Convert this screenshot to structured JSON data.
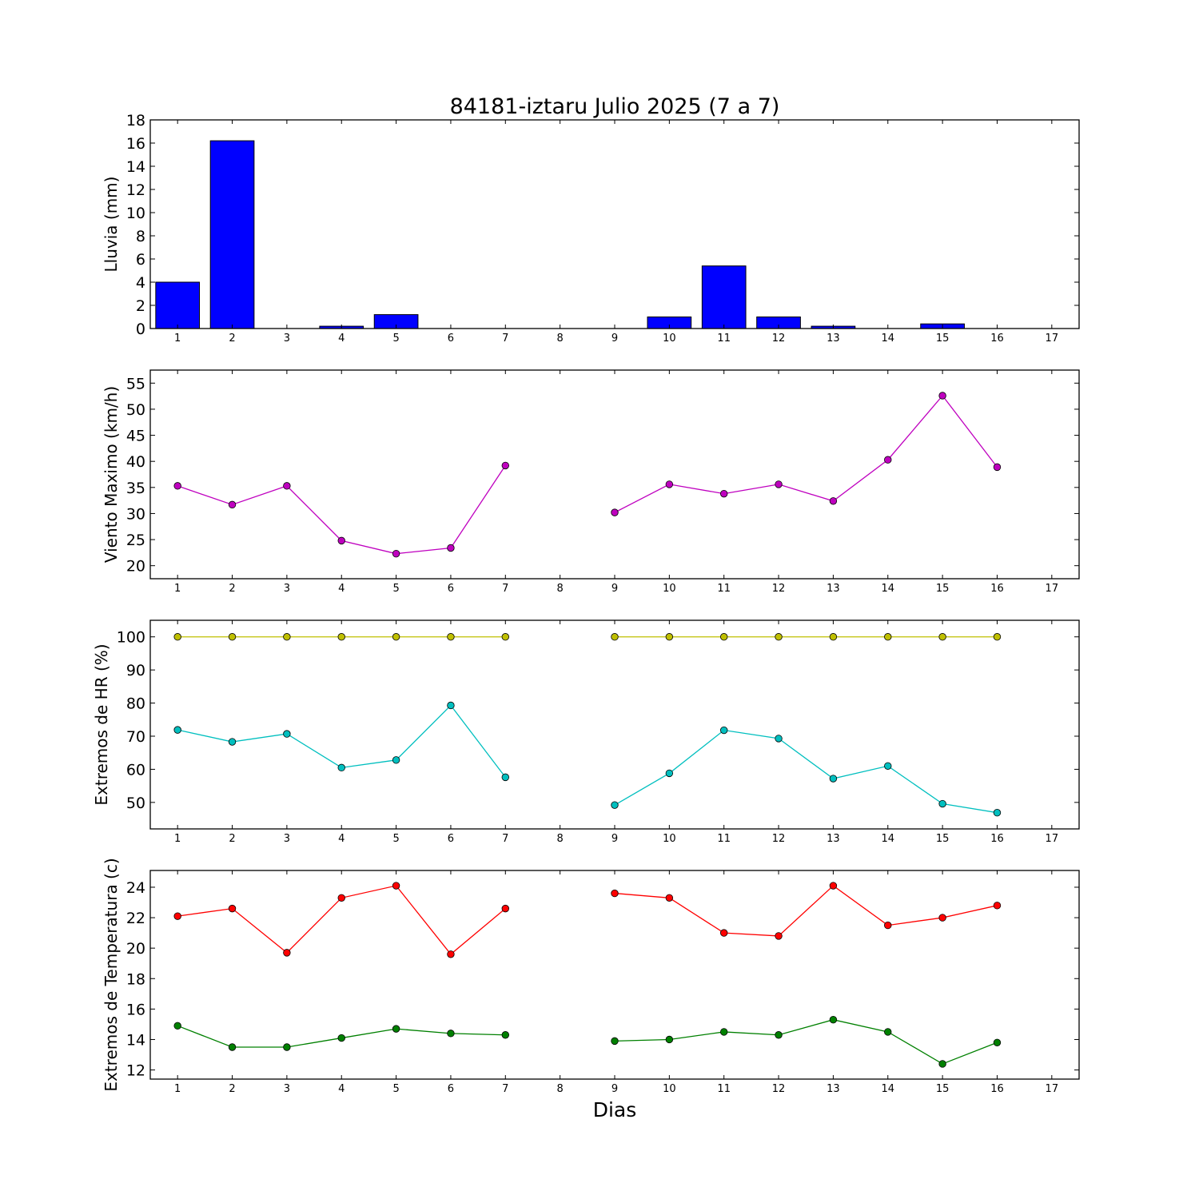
{
  "figure": {
    "title": "84181-iztaru Julio 2025  (7 a 7)",
    "xlabel": "Dias"
  },
  "chart_data": [
    {
      "type": "bar",
      "ylabel": "Lluvia (mm)",
      "xlim": [
        0.5,
        17.5
      ],
      "ylim": [
        0,
        18
      ],
      "xticks": [
        1,
        2,
        3,
        4,
        5,
        6,
        7,
        8,
        9,
        10,
        11,
        12,
        13,
        14,
        15,
        16,
        17
      ],
      "yticks": [
        0,
        2,
        4,
        6,
        8,
        10,
        12,
        14,
        16,
        18
      ],
      "x": [
        1,
        2,
        3,
        4,
        5,
        6,
        7,
        8,
        9,
        10,
        11,
        12,
        13,
        14,
        15,
        16
      ],
      "values": [
        4.0,
        16.2,
        0,
        0.2,
        1.2,
        0,
        0,
        0,
        0,
        1.0,
        5.4,
        1.0,
        0.2,
        0,
        0.4,
        0
      ],
      "color": "#0000ff"
    },
    {
      "type": "line",
      "ylabel": "Viento Maximo (km/h)",
      "xlim": [
        0.5,
        17.5
      ],
      "ylim": [
        17.5,
        57.5
      ],
      "xticks": [
        1,
        2,
        3,
        4,
        5,
        6,
        7,
        8,
        9,
        10,
        11,
        12,
        13,
        14,
        15,
        16,
        17
      ],
      "yticks": [
        20,
        25,
        30,
        35,
        40,
        45,
        50,
        55
      ],
      "series": [
        {
          "color": "#bf00bf",
          "x": [
            1,
            2,
            3,
            4,
            5,
            6,
            7,
            8,
            9,
            10,
            11,
            12,
            13,
            14,
            15,
            16
          ],
          "y": [
            35.3,
            31.7,
            35.3,
            24.8,
            22.3,
            23.4,
            39.2,
            null,
            30.2,
            35.6,
            33.8,
            35.6,
            32.4,
            40.3,
            52.6,
            38.9
          ]
        }
      ]
    },
    {
      "type": "line",
      "ylabel": "Extremos de HR (%)",
      "xlim": [
        0.5,
        17.5
      ],
      "ylim": [
        42,
        105
      ],
      "xticks": [
        1,
        2,
        3,
        4,
        5,
        6,
        7,
        8,
        9,
        10,
        11,
        12,
        13,
        14,
        15,
        16,
        17
      ],
      "yticks": [
        50,
        60,
        70,
        80,
        90,
        100
      ],
      "series": [
        {
          "color": "#bfbf00",
          "x": [
            1,
            2,
            3,
            4,
            5,
            6,
            7,
            8,
            9,
            10,
            11,
            12,
            13,
            14,
            15,
            16
          ],
          "y": [
            100,
            100,
            100,
            100,
            100,
            100,
            100,
            null,
            100,
            100,
            100,
            100,
            100,
            100,
            100,
            100
          ]
        },
        {
          "color": "#00bfbf",
          "x": [
            1,
            2,
            3,
            4,
            5,
            6,
            7,
            8,
            9,
            10,
            11,
            12,
            13,
            14,
            15,
            16
          ],
          "y": [
            71.9,
            68.3,
            70.7,
            60.5,
            62.8,
            79.3,
            57.6,
            null,
            49.2,
            58.8,
            71.8,
            69.3,
            57.2,
            61.0,
            49.6,
            46.9
          ]
        }
      ]
    },
    {
      "type": "line",
      "ylabel": "Extremos de Temperatura (c)",
      "xlim": [
        0.5,
        17.5
      ],
      "ylim": [
        11.4,
        25.1
      ],
      "xticks": [
        1,
        2,
        3,
        4,
        5,
        6,
        7,
        8,
        9,
        10,
        11,
        12,
        13,
        14,
        15,
        16,
        17
      ],
      "yticks": [
        12,
        14,
        16,
        18,
        20,
        22,
        24
      ],
      "series": [
        {
          "color": "#ff0000",
          "x": [
            1,
            2,
            3,
            4,
            5,
            6,
            7,
            8,
            9,
            10,
            11,
            12,
            13,
            14,
            15,
            16
          ],
          "y": [
            22.1,
            22.6,
            19.7,
            23.3,
            24.1,
            19.6,
            22.6,
            null,
            23.6,
            23.3,
            21.0,
            20.8,
            24.1,
            21.5,
            22.0,
            22.8
          ]
        },
        {
          "color": "#008000",
          "x": [
            1,
            2,
            3,
            4,
            5,
            6,
            7,
            8,
            9,
            10,
            11,
            12,
            13,
            14,
            15,
            16
          ],
          "y": [
            14.9,
            13.5,
            13.5,
            14.1,
            14.7,
            14.4,
            14.3,
            null,
            13.9,
            14.0,
            14.5,
            14.3,
            15.3,
            14.5,
            12.4,
            13.8
          ]
        }
      ]
    }
  ]
}
